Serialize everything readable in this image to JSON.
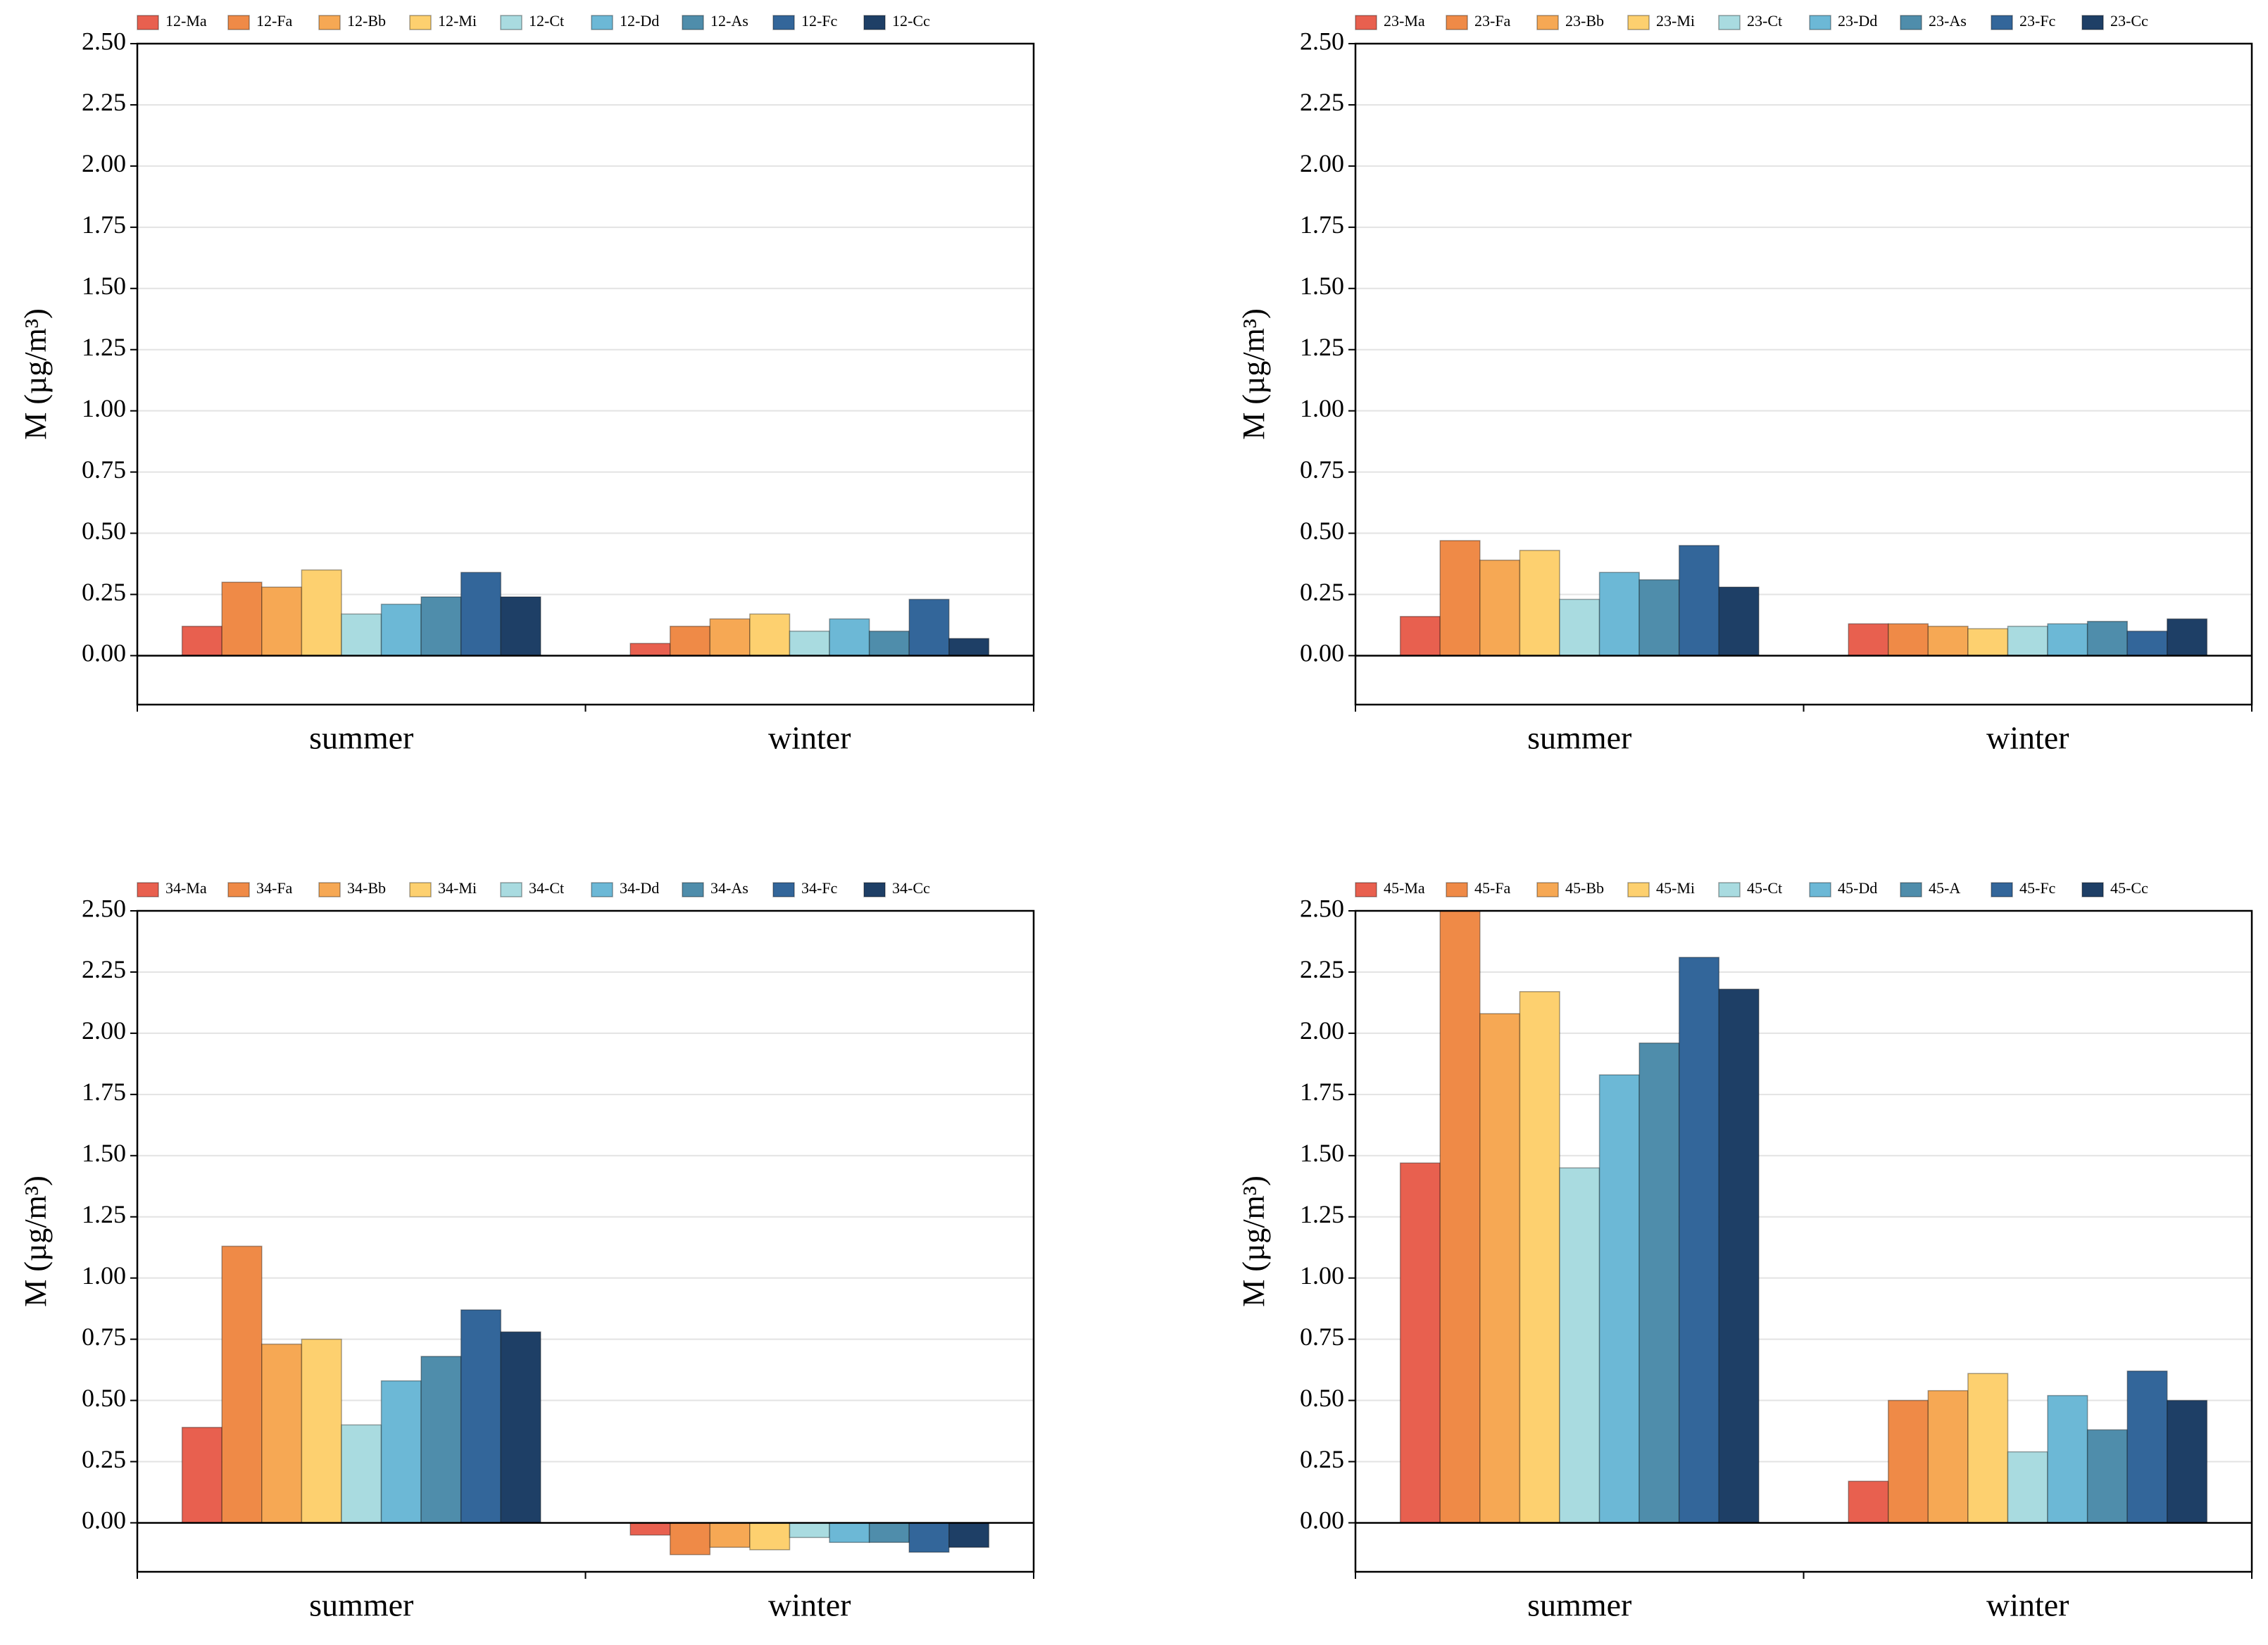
{
  "chart_data": [
    {
      "type": "bar",
      "ylabel": "M (µg/m³)",
      "categories": [
        "summer",
        "winter"
      ],
      "ylim": [
        -0.2,
        2.5
      ],
      "yticks": [
        {
          "value": 0,
          "label": "0.00"
        },
        {
          "value": 0.25,
          "label": "0.25"
        },
        {
          "value": 0.5,
          "label": "0.50"
        },
        {
          "value": 0.75,
          "label": "0.75"
        },
        {
          "value": 1,
          "label": "1.00"
        },
        {
          "value": 1.25,
          "label": "1.25"
        },
        {
          "value": 1.5,
          "label": "1.50"
        },
        {
          "value": 1.75,
          "label": "1.75"
        },
        {
          "value": 2,
          "label": "2.00"
        },
        {
          "value": 2.25,
          "label": "2.25"
        },
        {
          "value": 2.5,
          "label": "2.50"
        }
      ],
      "grid": true,
      "series": [
        {
          "name": "12-Ma",
          "color": "#e8604f",
          "values": [
            0.12,
            0.05
          ]
        },
        {
          "name": "12-Fa",
          "color": "#ef8a47",
          "values": [
            0.3,
            0.12
          ]
        },
        {
          "name": "12-Bb",
          "color": "#f6a854",
          "values": [
            0.28,
            0.15
          ]
        },
        {
          "name": "12-Mi",
          "color": "#fdd06f",
          "values": [
            0.35,
            0.17
          ]
        },
        {
          "name": "12-Ct",
          "color": "#a9dbe0",
          "values": [
            0.17,
            0.1
          ]
        },
        {
          "name": "12-Dd",
          "color": "#6cb8d6",
          "values": [
            0.21,
            0.15
          ]
        },
        {
          "name": "12-As",
          "color": "#4f8dab",
          "values": [
            0.24,
            0.1
          ]
        },
        {
          "name": "12-Fc",
          "color": "#33669a",
          "values": [
            0.34,
            0.23
          ]
        },
        {
          "name": "12-Cc",
          "color": "#1e3f66",
          "values": [
            0.24,
            0.07
          ]
        }
      ]
    },
    {
      "type": "bar",
      "ylabel": "M (µg/m³)",
      "categories": [
        "summer",
        "winter"
      ],
      "ylim": [
        -0.2,
        2.5
      ],
      "yticks": [
        {
          "value": 0,
          "label": "0.00"
        },
        {
          "value": 0.25,
          "label": "0.25"
        },
        {
          "value": 0.5,
          "label": "0.50"
        },
        {
          "value": 0.75,
          "label": "0.75"
        },
        {
          "value": 1,
          "label": "1.00"
        },
        {
          "value": 1.25,
          "label": "1.25"
        },
        {
          "value": 1.5,
          "label": "1.50"
        },
        {
          "value": 1.75,
          "label": "1.75"
        },
        {
          "value": 2,
          "label": "2.00"
        },
        {
          "value": 2.25,
          "label": "2.25"
        },
        {
          "value": 2.5,
          "label": "2.50"
        }
      ],
      "grid": true,
      "series": [
        {
          "name": "23-Ma",
          "color": "#e8604f",
          "values": [
            0.16,
            0.13
          ]
        },
        {
          "name": "23-Fa",
          "color": "#ef8a47",
          "values": [
            0.47,
            0.13
          ]
        },
        {
          "name": "23-Bb",
          "color": "#f6a854",
          "values": [
            0.39,
            0.12
          ]
        },
        {
          "name": "23-Mi",
          "color": "#fdd06f",
          "values": [
            0.43,
            0.11
          ]
        },
        {
          "name": "23-Ct",
          "color": "#a9dbe0",
          "values": [
            0.23,
            0.12
          ]
        },
        {
          "name": "23-Dd",
          "color": "#6cb8d6",
          "values": [
            0.34,
            0.13
          ]
        },
        {
          "name": "23-As",
          "color": "#4f8dab",
          "values": [
            0.31,
            0.14
          ]
        },
        {
          "name": "23-Fc",
          "color": "#33669a",
          "values": [
            0.45,
            0.1
          ]
        },
        {
          "name": "23-Cc",
          "color": "#1e3f66",
          "values": [
            0.28,
            0.15
          ]
        }
      ]
    },
    {
      "type": "bar",
      "ylabel": "M (µg/m³)",
      "categories": [
        "summer",
        "winter"
      ],
      "ylim": [
        -0.2,
        2.5
      ],
      "yticks": [
        {
          "value": 0,
          "label": "0.00"
        },
        {
          "value": 0.25,
          "label": "0.25"
        },
        {
          "value": 0.5,
          "label": "0.50"
        },
        {
          "value": 0.75,
          "label": "0.75"
        },
        {
          "value": 1,
          "label": "1.00"
        },
        {
          "value": 1.25,
          "label": "1.25"
        },
        {
          "value": 1.5,
          "label": "1.50"
        },
        {
          "value": 1.75,
          "label": "1.75"
        },
        {
          "value": 2,
          "label": "2.00"
        },
        {
          "value": 2.25,
          "label": "2.25"
        },
        {
          "value": 2.5,
          "label": "2.50"
        }
      ],
      "grid": true,
      "series": [
        {
          "name": "34-Ma",
          "color": "#e8604f",
          "values": [
            0.39,
            -0.05
          ]
        },
        {
          "name": "34-Fa",
          "color": "#ef8a47",
          "values": [
            1.13,
            -0.13
          ]
        },
        {
          "name": "34-Bb",
          "color": "#f6a854",
          "values": [
            0.73,
            -0.1
          ]
        },
        {
          "name": "34-Mi",
          "color": "#fdd06f",
          "values": [
            0.75,
            -0.11
          ]
        },
        {
          "name": "34-Ct",
          "color": "#a9dbe0",
          "values": [
            0.4,
            -0.06
          ]
        },
        {
          "name": "34-Dd",
          "color": "#6cb8d6",
          "values": [
            0.58,
            -0.08
          ]
        },
        {
          "name": "34-As",
          "color": "#4f8dab",
          "values": [
            0.68,
            -0.08
          ]
        },
        {
          "name": "34-Fc",
          "color": "#33669a",
          "values": [
            0.87,
            -0.12
          ]
        },
        {
          "name": "34-Cc",
          "color": "#1e3f66",
          "values": [
            0.78,
            -0.1
          ]
        }
      ]
    },
    {
      "type": "bar",
      "ylabel": "M (µg/m³)",
      "categories": [
        "summer",
        "winter"
      ],
      "ylim": [
        -0.2,
        2.5
      ],
      "yticks": [
        {
          "value": 0,
          "label": "0.00"
        },
        {
          "value": 0.25,
          "label": "0.25"
        },
        {
          "value": 0.5,
          "label": "0.50"
        },
        {
          "value": 0.75,
          "label": "0.75"
        },
        {
          "value": 1,
          "label": "1.00"
        },
        {
          "value": 1.25,
          "label": "1.25"
        },
        {
          "value": 1.5,
          "label": "1.50"
        },
        {
          "value": 1.75,
          "label": "1.75"
        },
        {
          "value": 2,
          "label": "2.00"
        },
        {
          "value": 2.25,
          "label": "2.25"
        },
        {
          "value": 2.5,
          "label": "2.50"
        }
      ],
      "grid": true,
      "series": [
        {
          "name": "45-Ma",
          "color": "#e8604f",
          "values": [
            1.47,
            0.17
          ]
        },
        {
          "name": "45-Fa",
          "color": "#ef8a47",
          "values": [
            2.5,
            0.5
          ]
        },
        {
          "name": "45-Bb",
          "color": "#f6a854",
          "values": [
            2.08,
            0.54
          ]
        },
        {
          "name": "45-Mi",
          "color": "#fdd06f",
          "values": [
            2.17,
            0.61
          ]
        },
        {
          "name": "45-Ct",
          "color": "#a9dbe0",
          "values": [
            1.45,
            0.29
          ]
        },
        {
          "name": "45-Dd",
          "color": "#6cb8d6",
          "values": [
            1.83,
            0.52
          ]
        },
        {
          "name": "45-A",
          "color": "#4f8dab",
          "values": [
            1.96,
            0.38
          ]
        },
        {
          "name": "45-Fc",
          "color": "#33669a",
          "values": [
            2.31,
            0.62
          ]
        },
        {
          "name": "45-Cc",
          "color": "#1e3f66",
          "values": [
            2.18,
            0.5
          ]
        }
      ]
    }
  ]
}
